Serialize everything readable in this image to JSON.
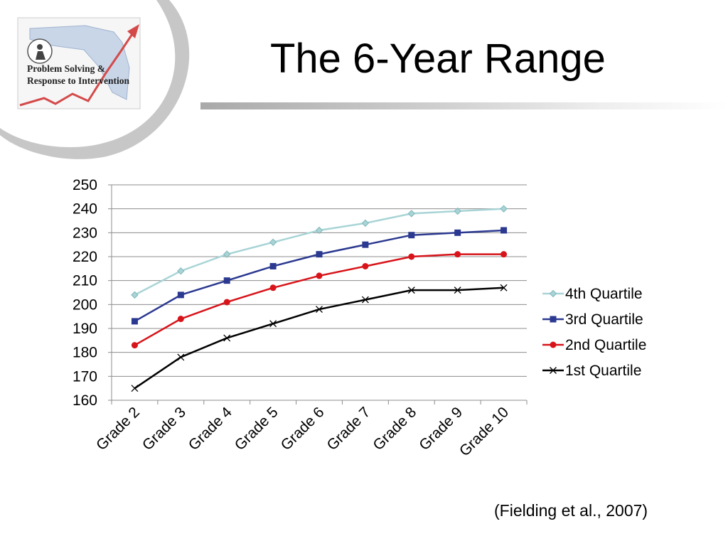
{
  "slide": {
    "title": "The 6-Year Range",
    "citation": "(Fielding et al., 2007)"
  },
  "logo": {
    "line1": "Problem Solving &",
    "line2": "Response to Intervention"
  },
  "chart_data": {
    "type": "line",
    "title": "",
    "xlabel": "",
    "ylabel": "",
    "categories": [
      "Grade 2",
      "Grade 3",
      "Grade 4",
      "Grade 5",
      "Grade 6",
      "Grade 7",
      "Grade 8",
      "Grade 9",
      "Grade 10"
    ],
    "ylim": [
      160,
      250
    ],
    "yticks": [
      160,
      170,
      180,
      190,
      200,
      210,
      220,
      230,
      240,
      250
    ],
    "grid": true,
    "legend_position": "right",
    "series": [
      {
        "name": "4th Quartile",
        "values": [
          204,
          214,
          221,
          226,
          231,
          234,
          238,
          239,
          240
        ],
        "color": "#a9d4d6",
        "marker": "diamond"
      },
      {
        "name": "3rd Quartile",
        "values": [
          193,
          204,
          210,
          216,
          221,
          225,
          229,
          230,
          231
        ],
        "color": "#2b3990",
        "marker": "square"
      },
      {
        "name": "2nd Quartile",
        "values": [
          183,
          194,
          201,
          207,
          212,
          216,
          220,
          221,
          221
        ],
        "color": "#d7141a",
        "marker": "circle"
      },
      {
        "name": "1st Quartile",
        "values": [
          165,
          178,
          186,
          192,
          198,
          202,
          206,
          206,
          207
        ],
        "color": "#000000",
        "marker": "x"
      }
    ]
  }
}
